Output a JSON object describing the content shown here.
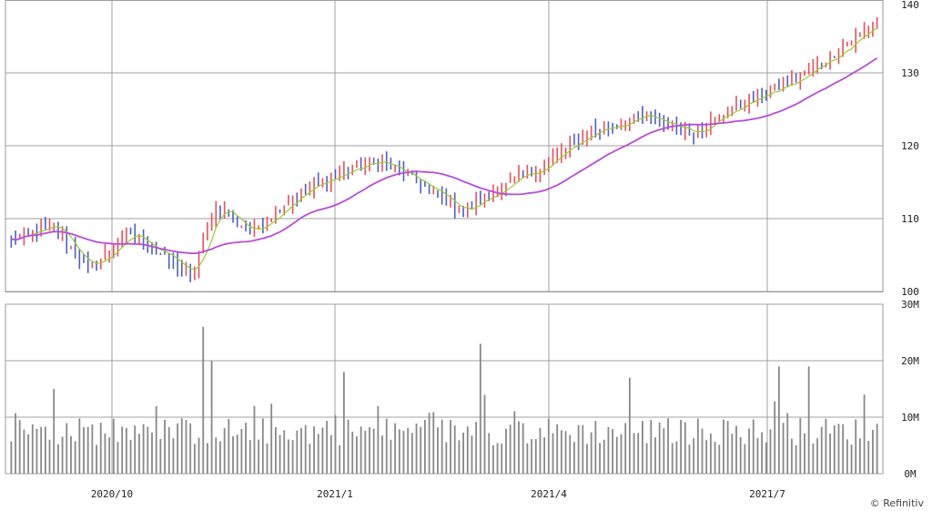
{
  "chart_data": [
    {
      "type": "candlestick",
      "panel": "price",
      "ylim": [
        100,
        140
      ],
      "y_ticks": [
        "100",
        "110",
        "120",
        "130",
        "140"
      ],
      "x_ticks": [
        "2020/10",
        "2021/1",
        "2021/4",
        "2021/7"
      ],
      "grid": true,
      "moving_averages": [
        {
          "color": "#99cc33"
        },
        {
          "color": "#b84ddb"
        }
      ],
      "up_color": "#e8505b",
      "down_color": "#4c5fc6",
      "trend_keypoints": [
        {
          "i": 0,
          "close": 107
        },
        {
          "i": 10,
          "close": 109
        },
        {
          "i": 18,
          "close": 103
        },
        {
          "i": 28,
          "close": 108
        },
        {
          "i": 38,
          "close": 104
        },
        {
          "i": 42,
          "close": 102
        },
        {
          "i": 48,
          "close": 112
        },
        {
          "i": 56,
          "close": 108
        },
        {
          "i": 66,
          "close": 113
        },
        {
          "i": 76,
          "close": 116
        },
        {
          "i": 86,
          "close": 118
        },
        {
          "i": 95,
          "close": 115
        },
        {
          "i": 106,
          "close": 111
        },
        {
          "i": 114,
          "close": 114
        },
        {
          "i": 124,
          "close": 117
        },
        {
          "i": 136,
          "close": 122
        },
        {
          "i": 148,
          "close": 124
        },
        {
          "i": 160,
          "close": 122
        },
        {
          "i": 172,
          "close": 126
        },
        {
          "i": 184,
          "close": 129
        },
        {
          "i": 196,
          "close": 134
        },
        {
          "i": 203,
          "close": 137
        }
      ]
    },
    {
      "type": "bar",
      "panel": "volume",
      "ylim": [
        0,
        30
      ],
      "y_ticks": [
        "0M",
        "10M",
        "20M",
        "30M"
      ],
      "bar_color": "#888888",
      "peaks": [
        {
          "i": 10,
          "value": 15
        },
        {
          "i": 45,
          "value": 26
        },
        {
          "i": 47,
          "value": 20
        },
        {
          "i": 78,
          "value": 18
        },
        {
          "i": 110,
          "value": 23
        },
        {
          "i": 145,
          "value": 17
        },
        {
          "i": 180,
          "value": 19
        },
        {
          "i": 187,
          "value": 19
        },
        {
          "i": 200,
          "value": 14
        }
      ]
    }
  ],
  "credit": "Refinitiv"
}
